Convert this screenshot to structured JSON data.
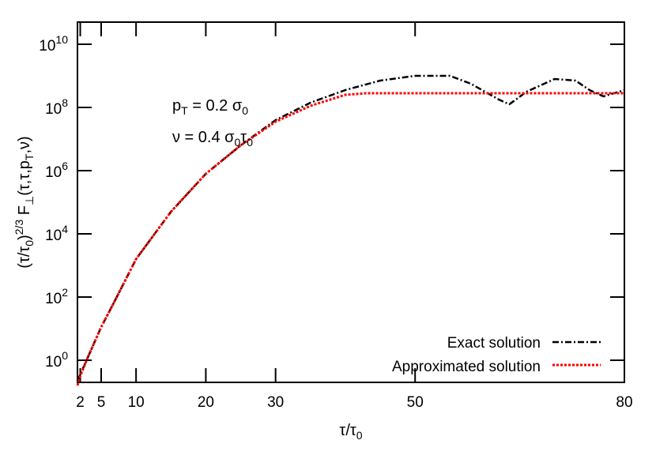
{
  "chart_data": {
    "type": "line",
    "xlabel": "τ/τ₀",
    "ylabel": "(τ/τ₀)^{2/3} F⊥(τ,τ,pT,ν)",
    "x_scale": "linear",
    "y_scale": "log",
    "xlim": [
      1.6,
      80
    ],
    "ylim_log10": [
      -0.7,
      10.7
    ],
    "x_ticks": [
      {
        "value": 2,
        "label": "2"
      },
      {
        "value": 5,
        "label": "5"
      },
      {
        "value": 10,
        "label": "10"
      },
      {
        "value": 20,
        "label": "20"
      },
      {
        "value": 30,
        "label": "30"
      },
      {
        "value": 50,
        "label": "50"
      },
      {
        "value": 80,
        "label": "80"
      }
    ],
    "y_ticks": [
      {
        "exp": 0,
        "base": "10",
        "sup": "0"
      },
      {
        "exp": 2,
        "base": "10",
        "sup": "2"
      },
      {
        "exp": 4,
        "base": "10",
        "sup": "4"
      },
      {
        "exp": 6,
        "base": "10",
        "sup": "6"
      },
      {
        "exp": 8,
        "base": "10",
        "sup": "8"
      },
      {
        "exp": 10,
        "base": "10",
        "sup": "10"
      }
    ],
    "annotations": [
      {
        "text": "pT = 0.2 σ0"
      },
      {
        "text": "ν = 0.4 σ0τ0"
      }
    ],
    "legend_position": "bottom-right",
    "series": [
      {
        "name": "Exact solution",
        "color": "#000000",
        "dash": "dash-dot",
        "points": [
          [
            1.6,
            -0.65
          ],
          [
            2,
            -0.45
          ],
          [
            3,
            0.05
          ],
          [
            5,
            1.05
          ],
          [
            7,
            1.9
          ],
          [
            10,
            3.2
          ],
          [
            15,
            4.7
          ],
          [
            20,
            5.9
          ],
          [
            25,
            6.8
          ],
          [
            30,
            7.6
          ],
          [
            35,
            8.15
          ],
          [
            40,
            8.55
          ],
          [
            45,
            8.85
          ],
          [
            50,
            9.0
          ],
          [
            55,
            9.0
          ],
          [
            58,
            8.75
          ],
          [
            62,
            8.25
          ],
          [
            63.5,
            8.1
          ],
          [
            66,
            8.5
          ],
          [
            70,
            8.9
          ],
          [
            73,
            8.85
          ],
          [
            75,
            8.55
          ],
          [
            77,
            8.35
          ],
          [
            80,
            8.55
          ]
        ]
      },
      {
        "name": "Approximated solution",
        "color": "#ff0000",
        "dash": "dotted",
        "points": [
          [
            1.6,
            -0.8
          ],
          [
            2,
            -0.5
          ],
          [
            3,
            0.05
          ],
          [
            5,
            1.05
          ],
          [
            7,
            1.9
          ],
          [
            10,
            3.2
          ],
          [
            15,
            4.7
          ],
          [
            20,
            5.9
          ],
          [
            25,
            6.8
          ],
          [
            30,
            7.55
          ],
          [
            35,
            8.05
          ],
          [
            40,
            8.4
          ],
          [
            43,
            8.45
          ],
          [
            50,
            8.45
          ],
          [
            60,
            8.45
          ],
          [
            70,
            8.45
          ],
          [
            80,
            8.45
          ]
        ]
      }
    ]
  }
}
